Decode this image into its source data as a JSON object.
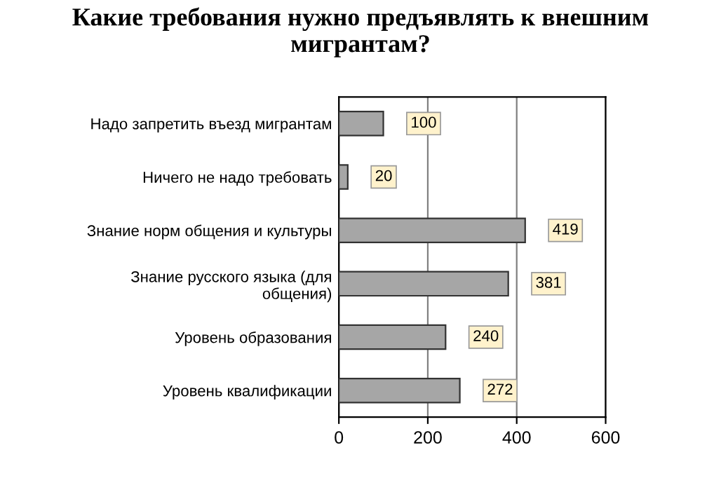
{
  "chart_data": {
    "type": "bar",
    "orientation": "horizontal",
    "title": "Какие требования нужно предъявлять к внешним мигрантам?",
    "categories": [
      "Надо запретить въезд мигрантам",
      "Ничего не надо требовать",
      "Знание норм общения и культуры",
      "Знание русского языка (для\nобщения)",
      "Уровень образования",
      "Уровень квалификации"
    ],
    "values": [
      100,
      20,
      419,
      381,
      240,
      272
    ],
    "color": "#a6a6a6",
    "xlim": [
      0,
      600
    ],
    "xticks": [
      0,
      200,
      400,
      600
    ],
    "grid": "x",
    "data_labels": true
  }
}
